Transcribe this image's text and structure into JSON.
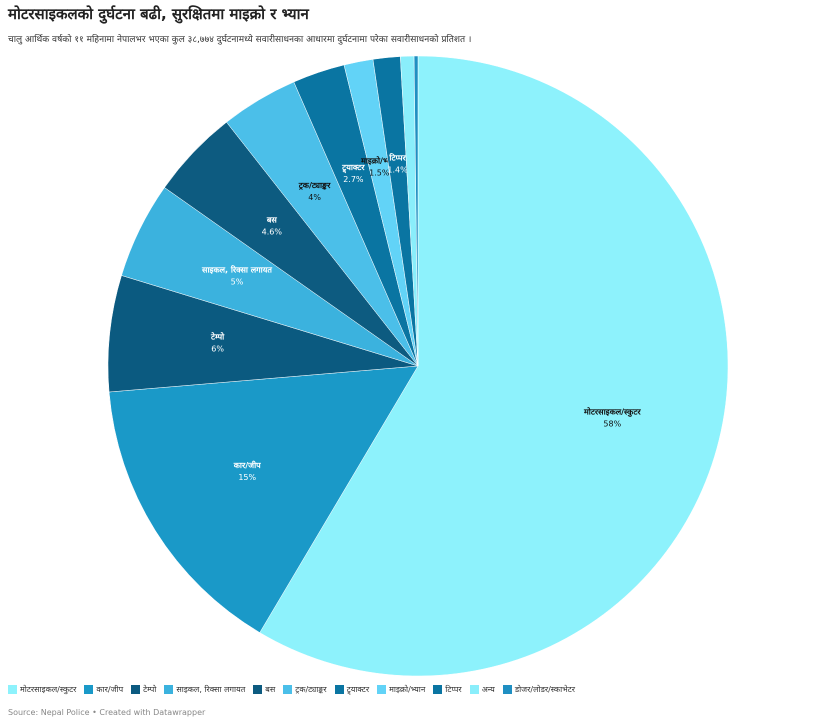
{
  "chart_data": {
    "type": "pie",
    "title": "मोटरसाइकलको दुर्घटना बढी, सुरक्षितमा माइक्रो र भ्यान",
    "subtitle": "चालु आर्थिक वर्षको ११ महिनामा नेपालभर भएका कुल ३८,७७४ दुर्घटनामध्ये सवारीसाधनका आधारमा दुर्घटनामा परेका सवारीसाधनको प्रतिशत ।",
    "categories": [
      "मोटरसाइकल/स्कुटर",
      "कार/जीप",
      "टेम्पो",
      "साइकल, रिक्सा लगायत",
      "बस",
      "ट्रक/ट्याङ्कर",
      "ट्र्याक्टर",
      "माइक्रो/भ्यान",
      "टिप्पर",
      "अन्य",
      "डोजर/लोडर/स्काभेटर"
    ],
    "values": [
      58,
      15,
      6,
      5,
      4.6,
      4,
      2.7,
      1.5,
      1.4,
      0.7,
      0.2
    ],
    "value_labels": [
      "58%",
      "15%",
      "6%",
      "5%",
      "4.6%",
      "4%",
      "2.7%",
      "1.5%",
      "1.4%",
      null,
      null
    ],
    "colors": [
      "#8df2fc",
      "#1a99c8",
      "#0b5a80",
      "#3bb2de",
      "#0d5b80",
      "#4bbfe9",
      "#0a75a2",
      "#62d3f7",
      "#0a75a2",
      "#8aeefb",
      "#1f8fc2"
    ],
    "source": "Source: Nepal Police • Created with Datawrapper"
  }
}
